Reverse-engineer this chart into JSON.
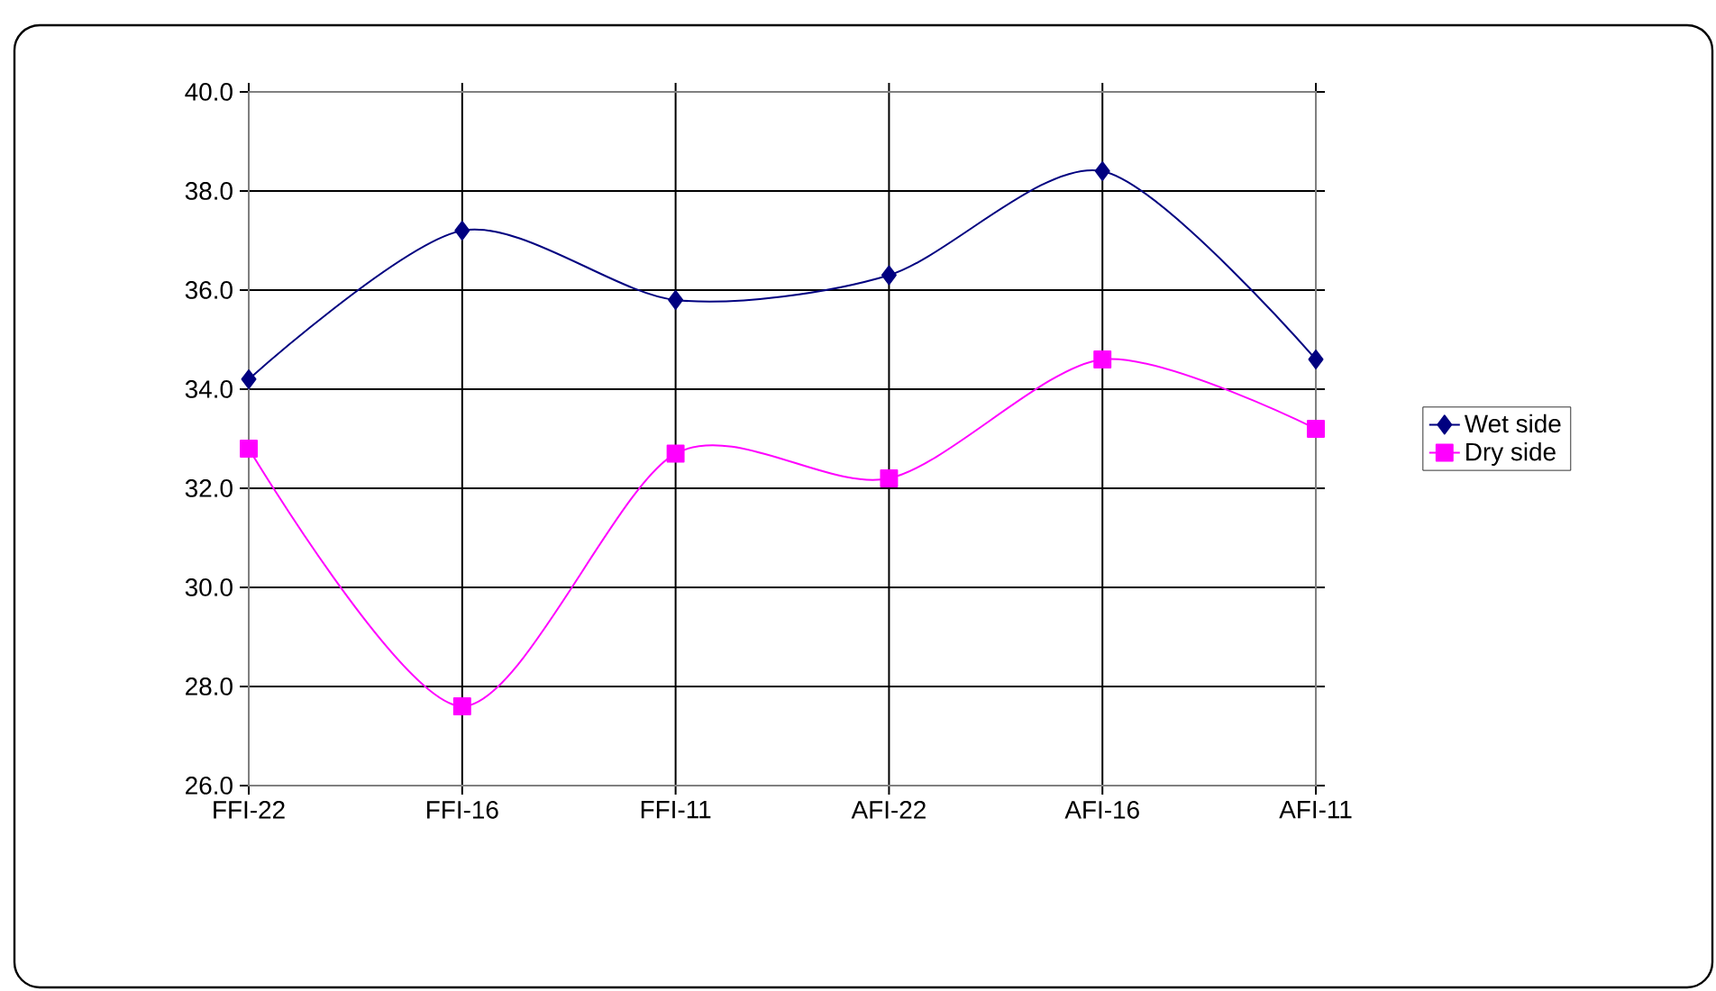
{
  "chart_data": {
    "type": "line",
    "categories": [
      "FFI-22",
      "FFI-16",
      "FFI-11",
      "AFI-22",
      "AFI-16",
      "AFI-11"
    ],
    "series": [
      {
        "name": "Wet side",
        "color": "#000080",
        "marker": "diamond",
        "values": [
          34.2,
          37.2,
          35.8,
          36.3,
          38.4,
          34.6
        ]
      },
      {
        "name": "Dry side",
        "color": "#ff00ff",
        "marker": "square",
        "values": [
          32.8,
          27.6,
          32.7,
          32.2,
          34.6,
          33.2
        ]
      }
    ],
    "ylim": [
      26,
      40
    ],
    "yticks": [
      {
        "value": 26,
        "label": "26.0"
      },
      {
        "value": 28,
        "label": "28.0"
      },
      {
        "value": 30,
        "label": "30.0"
      },
      {
        "value": 32,
        "label": "32.0"
      },
      {
        "value": 34,
        "label": "34.0"
      },
      {
        "value": 36,
        "label": "36.0"
      },
      {
        "value": 38,
        "label": "38.0"
      },
      {
        "value": 40,
        "label": "40.0"
      }
    ],
    "grid": true,
    "legend": "right",
    "line_style": "solid"
  }
}
